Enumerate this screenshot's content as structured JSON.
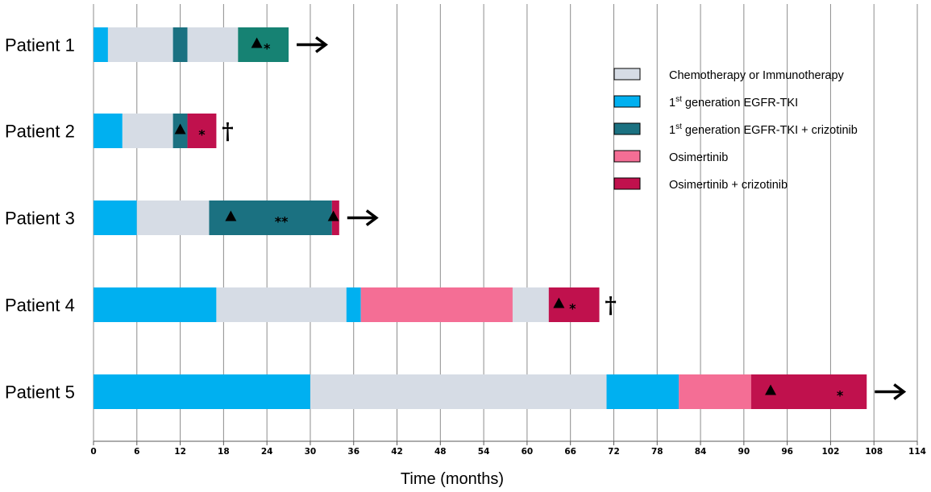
{
  "chart_data": {
    "type": "bar",
    "orientation": "horizontal-stacked",
    "categories": [
      "Patient 1",
      "Patient 2",
      "Patient 3",
      "Patient 4",
      "Patient 5"
    ],
    "xlabel": "Time (months)",
    "xlim": [
      0,
      114
    ],
    "xticks": [
      0,
      6,
      12,
      18,
      24,
      30,
      36,
      42,
      48,
      54,
      60,
      66,
      72,
      78,
      84,
      90,
      96,
      102,
      108,
      114
    ],
    "grid": "vertical",
    "legend_position": "top-right",
    "colors": {
      "chemo": "#d6dce5",
      "gen1": "#00b0f0",
      "gen1_criz": "#1b7181",
      "gen1_criz_p1": "#168273",
      "osim": "#f46e95",
      "osim_criz": "#c0114d"
    },
    "legend": [
      {
        "key": "chemo",
        "label": "Chemotherapy or Immunotherapy",
        "sup": ""
      },
      {
        "key": "gen1",
        "label": "  generation EGFR-TKI",
        "sup": "st",
        "pre": "1"
      },
      {
        "key": "gen1_criz",
        "label": "  generation EGFR-TKI + crizotinib",
        "sup": "st",
        "pre": "1"
      },
      {
        "key": "osim",
        "label": "Osimertinib",
        "sup": ""
      },
      {
        "key": "osim_criz",
        "label": "Osimertinib + crizotinib",
        "sup": ""
      }
    ],
    "series": [
      {
        "patient": "Patient 1",
        "segments": [
          {
            "treatment": "gen1",
            "start": 0,
            "end": 2
          },
          {
            "treatment": "chemo",
            "start": 2,
            "end": 11
          },
          {
            "treatment": "gen1_criz",
            "start": 11,
            "end": 13
          },
          {
            "treatment": "chemo",
            "start": 13,
            "end": 20
          },
          {
            "treatment": "gen1_criz_p1",
            "start": 20,
            "end": 27
          }
        ],
        "markers": [
          {
            "symbol": "▲",
            "x": 22.6
          },
          {
            "symbol": "*",
            "x": 24.0
          }
        ],
        "outcome": {
          "symbol": "arrow",
          "x": 27
        }
      },
      {
        "patient": "Patient 2",
        "segments": [
          {
            "treatment": "gen1",
            "start": 0,
            "end": 4
          },
          {
            "treatment": "chemo",
            "start": 4,
            "end": 11
          },
          {
            "treatment": "gen1_criz",
            "start": 11,
            "end": 13
          },
          {
            "treatment": "osim_criz",
            "start": 13,
            "end": 17
          }
        ],
        "markers": [
          {
            "symbol": "▲",
            "x": 12.0
          },
          {
            "symbol": "*",
            "x": 15.0
          }
        ],
        "outcome": {
          "symbol": "†",
          "x": 17
        }
      },
      {
        "patient": "Patient 3",
        "segments": [
          {
            "treatment": "gen1",
            "start": 0,
            "end": 6
          },
          {
            "treatment": "chemo",
            "start": 6,
            "end": 16
          },
          {
            "treatment": "gen1_criz",
            "start": 16,
            "end": 33
          },
          {
            "treatment": "osim_criz",
            "start": 33,
            "end": 34
          }
        ],
        "markers": [
          {
            "symbol": "▲",
            "x": 19.0
          },
          {
            "symbol": "**",
            "x": 26.0
          },
          {
            "symbol": "▲",
            "x": 33.2
          }
        ],
        "outcome": {
          "symbol": "arrow",
          "x": 34
        }
      },
      {
        "patient": "Patient 4",
        "segments": [
          {
            "treatment": "gen1",
            "start": 0,
            "end": 17
          },
          {
            "treatment": "chemo",
            "start": 17,
            "end": 35
          },
          {
            "treatment": "gen1",
            "start": 35,
            "end": 37
          },
          {
            "treatment": "osim",
            "start": 37,
            "end": 58
          },
          {
            "treatment": "chemo",
            "start": 58,
            "end": 63
          },
          {
            "treatment": "osim_criz",
            "start": 63,
            "end": 70
          }
        ],
        "markers": [
          {
            "symbol": "▲",
            "x": 64.4
          },
          {
            "symbol": "*",
            "x": 66.3
          }
        ],
        "outcome": {
          "symbol": "†",
          "x": 70
        }
      },
      {
        "patient": "Patient 5",
        "segments": [
          {
            "treatment": "gen1",
            "start": 0,
            "end": 30
          },
          {
            "treatment": "chemo",
            "start": 30,
            "end": 71
          },
          {
            "treatment": "gen1",
            "start": 71,
            "end": 81
          },
          {
            "treatment": "osim",
            "start": 81,
            "end": 91
          },
          {
            "treatment": "osim_criz",
            "start": 91,
            "end": 107
          }
        ],
        "markers": [
          {
            "symbol": "▲",
            "x": 93.7
          },
          {
            "symbol": "*",
            "x": 103.3
          }
        ],
        "outcome": {
          "symbol": "arrow",
          "x": 107
        }
      }
    ]
  }
}
